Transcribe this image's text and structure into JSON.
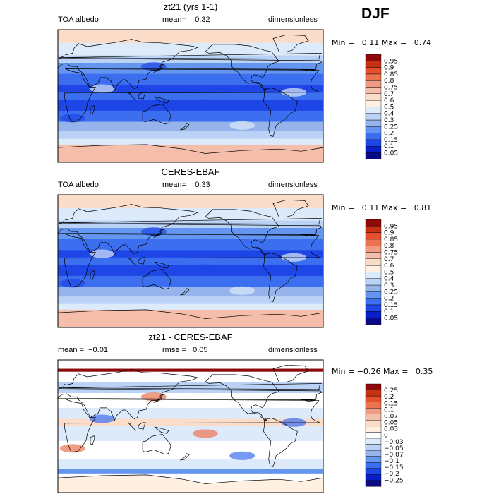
{
  "season": "DJF",
  "colors": {
    "abs": [
      "#0a0a87",
      "#0a1ec8",
      "#1e46e6",
      "#3c6ef0",
      "#6496f0",
      "#96b4eb",
      "#b9d2f5",
      "#dceafa",
      "#fff0e1",
      "#fadcc8",
      "#f5beaa",
      "#f09b82",
      "#eb7350",
      "#e6502d",
      "#c83214",
      "#8c0a0a"
    ],
    "diff": [
      "#0a0a87",
      "#0a1ec8",
      "#1e46e6",
      "#3c6ef0",
      "#6496f0",
      "#96b4eb",
      "#b9d2f5",
      "#dceafa",
      "#ffffff",
      "#fff0e1",
      "#fadcc8",
      "#f5beaa",
      "#f09b82",
      "#eb7350",
      "#e6502d",
      "#c83214",
      "#8c0a0a"
    ]
  },
  "chart_data": [
    {
      "type": "heatmap",
      "title": "zt21 (yrs 1-1)",
      "variable": "TOA albedo",
      "mean_label": "mean=",
      "mean": "0.32",
      "units": "dimensionless",
      "min_label": "Min =",
      "min": "0.11",
      "max_label": "Max =",
      "max": "0.74",
      "colorbar_levels": [
        "0.05",
        "0.1",
        "0.15",
        "0.2",
        "0.25",
        "0.3",
        "0.4",
        "0.5",
        "0.6",
        "0.7",
        "0.75",
        "0.8",
        "0.85",
        "0.9",
        "0.95"
      ]
    },
    {
      "type": "heatmap",
      "title": "CERES-EBAF",
      "variable": "TOA albedo",
      "mean_label": "mean=",
      "mean": "0.33",
      "units": "dimensionless",
      "min_label": "Min =",
      "min": "0.11",
      "max_label": "Max =",
      "max": "0.81",
      "colorbar_levels": [
        "0.05",
        "0.1",
        "0.15",
        "0.2",
        "0.25",
        "0.3",
        "0.4",
        "0.5",
        "0.6",
        "0.7",
        "0.75",
        "0.8",
        "0.85",
        "0.9",
        "0.95"
      ]
    },
    {
      "type": "heatmap",
      "title": "zt21 - CERES-EBAF",
      "mean_label": "mean =",
      "mean": "−0.01",
      "rmse_label": "rmse =",
      "rmse": "0.05",
      "units": "dimensionless",
      "min_label": "Min =",
      "min": "−0.26",
      "max_label": "Max =",
      "max": "0.35",
      "colorbar_levels": [
        "−0.25",
        "−0.2",
        "−0.15",
        "−0.1",
        "−0.07",
        "−0.05",
        "−0.03",
        "0",
        "0.03",
        "0.05",
        "0.07",
        "0.1",
        "0.15",
        "0.2",
        "0.25"
      ]
    }
  ]
}
